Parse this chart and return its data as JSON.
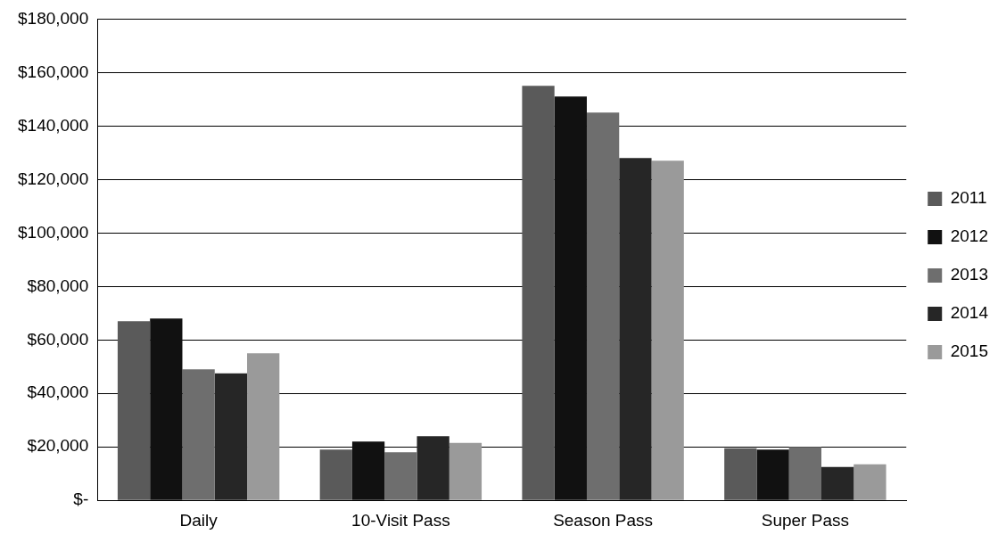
{
  "chart_data": {
    "type": "bar",
    "categories": [
      "Daily",
      "10-Visit Pass",
      "Season Pass",
      "Super Pass"
    ],
    "series": [
      {
        "name": "2011",
        "color": "#5a5a5a",
        "values": [
          67000,
          19000,
          155000,
          19500
        ]
      },
      {
        "name": "2012",
        "color": "#111111",
        "values": [
          68000,
          22000,
          151000,
          19000
        ]
      },
      {
        "name": "2013",
        "color": "#6e6e6e",
        "values": [
          49000,
          18000,
          145000,
          20000
        ]
      },
      {
        "name": "2014",
        "color": "#262626",
        "values": [
          47500,
          24000,
          128000,
          12500
        ]
      },
      {
        "name": "2015",
        "color": "#9a9a9a",
        "values": [
          55000,
          21500,
          127000,
          13500
        ]
      }
    ],
    "ylim": [
      0,
      180000
    ],
    "yticks": [
      {
        "value": 0,
        "label": "$-"
      },
      {
        "value": 20000,
        "label": "$20,000"
      },
      {
        "value": 40000,
        "label": "$40,000"
      },
      {
        "value": 60000,
        "label": "$60,000"
      },
      {
        "value": 80000,
        "label": "$80,000"
      },
      {
        "value": 100000,
        "label": "$100,000"
      },
      {
        "value": 120000,
        "label": "$120,000"
      },
      {
        "value": 140000,
        "label": "$140,000"
      },
      {
        "value": 160000,
        "label": "$160,000"
      },
      {
        "value": 180000,
        "label": "$180,000"
      }
    ],
    "grid": "y",
    "legend": "right"
  }
}
